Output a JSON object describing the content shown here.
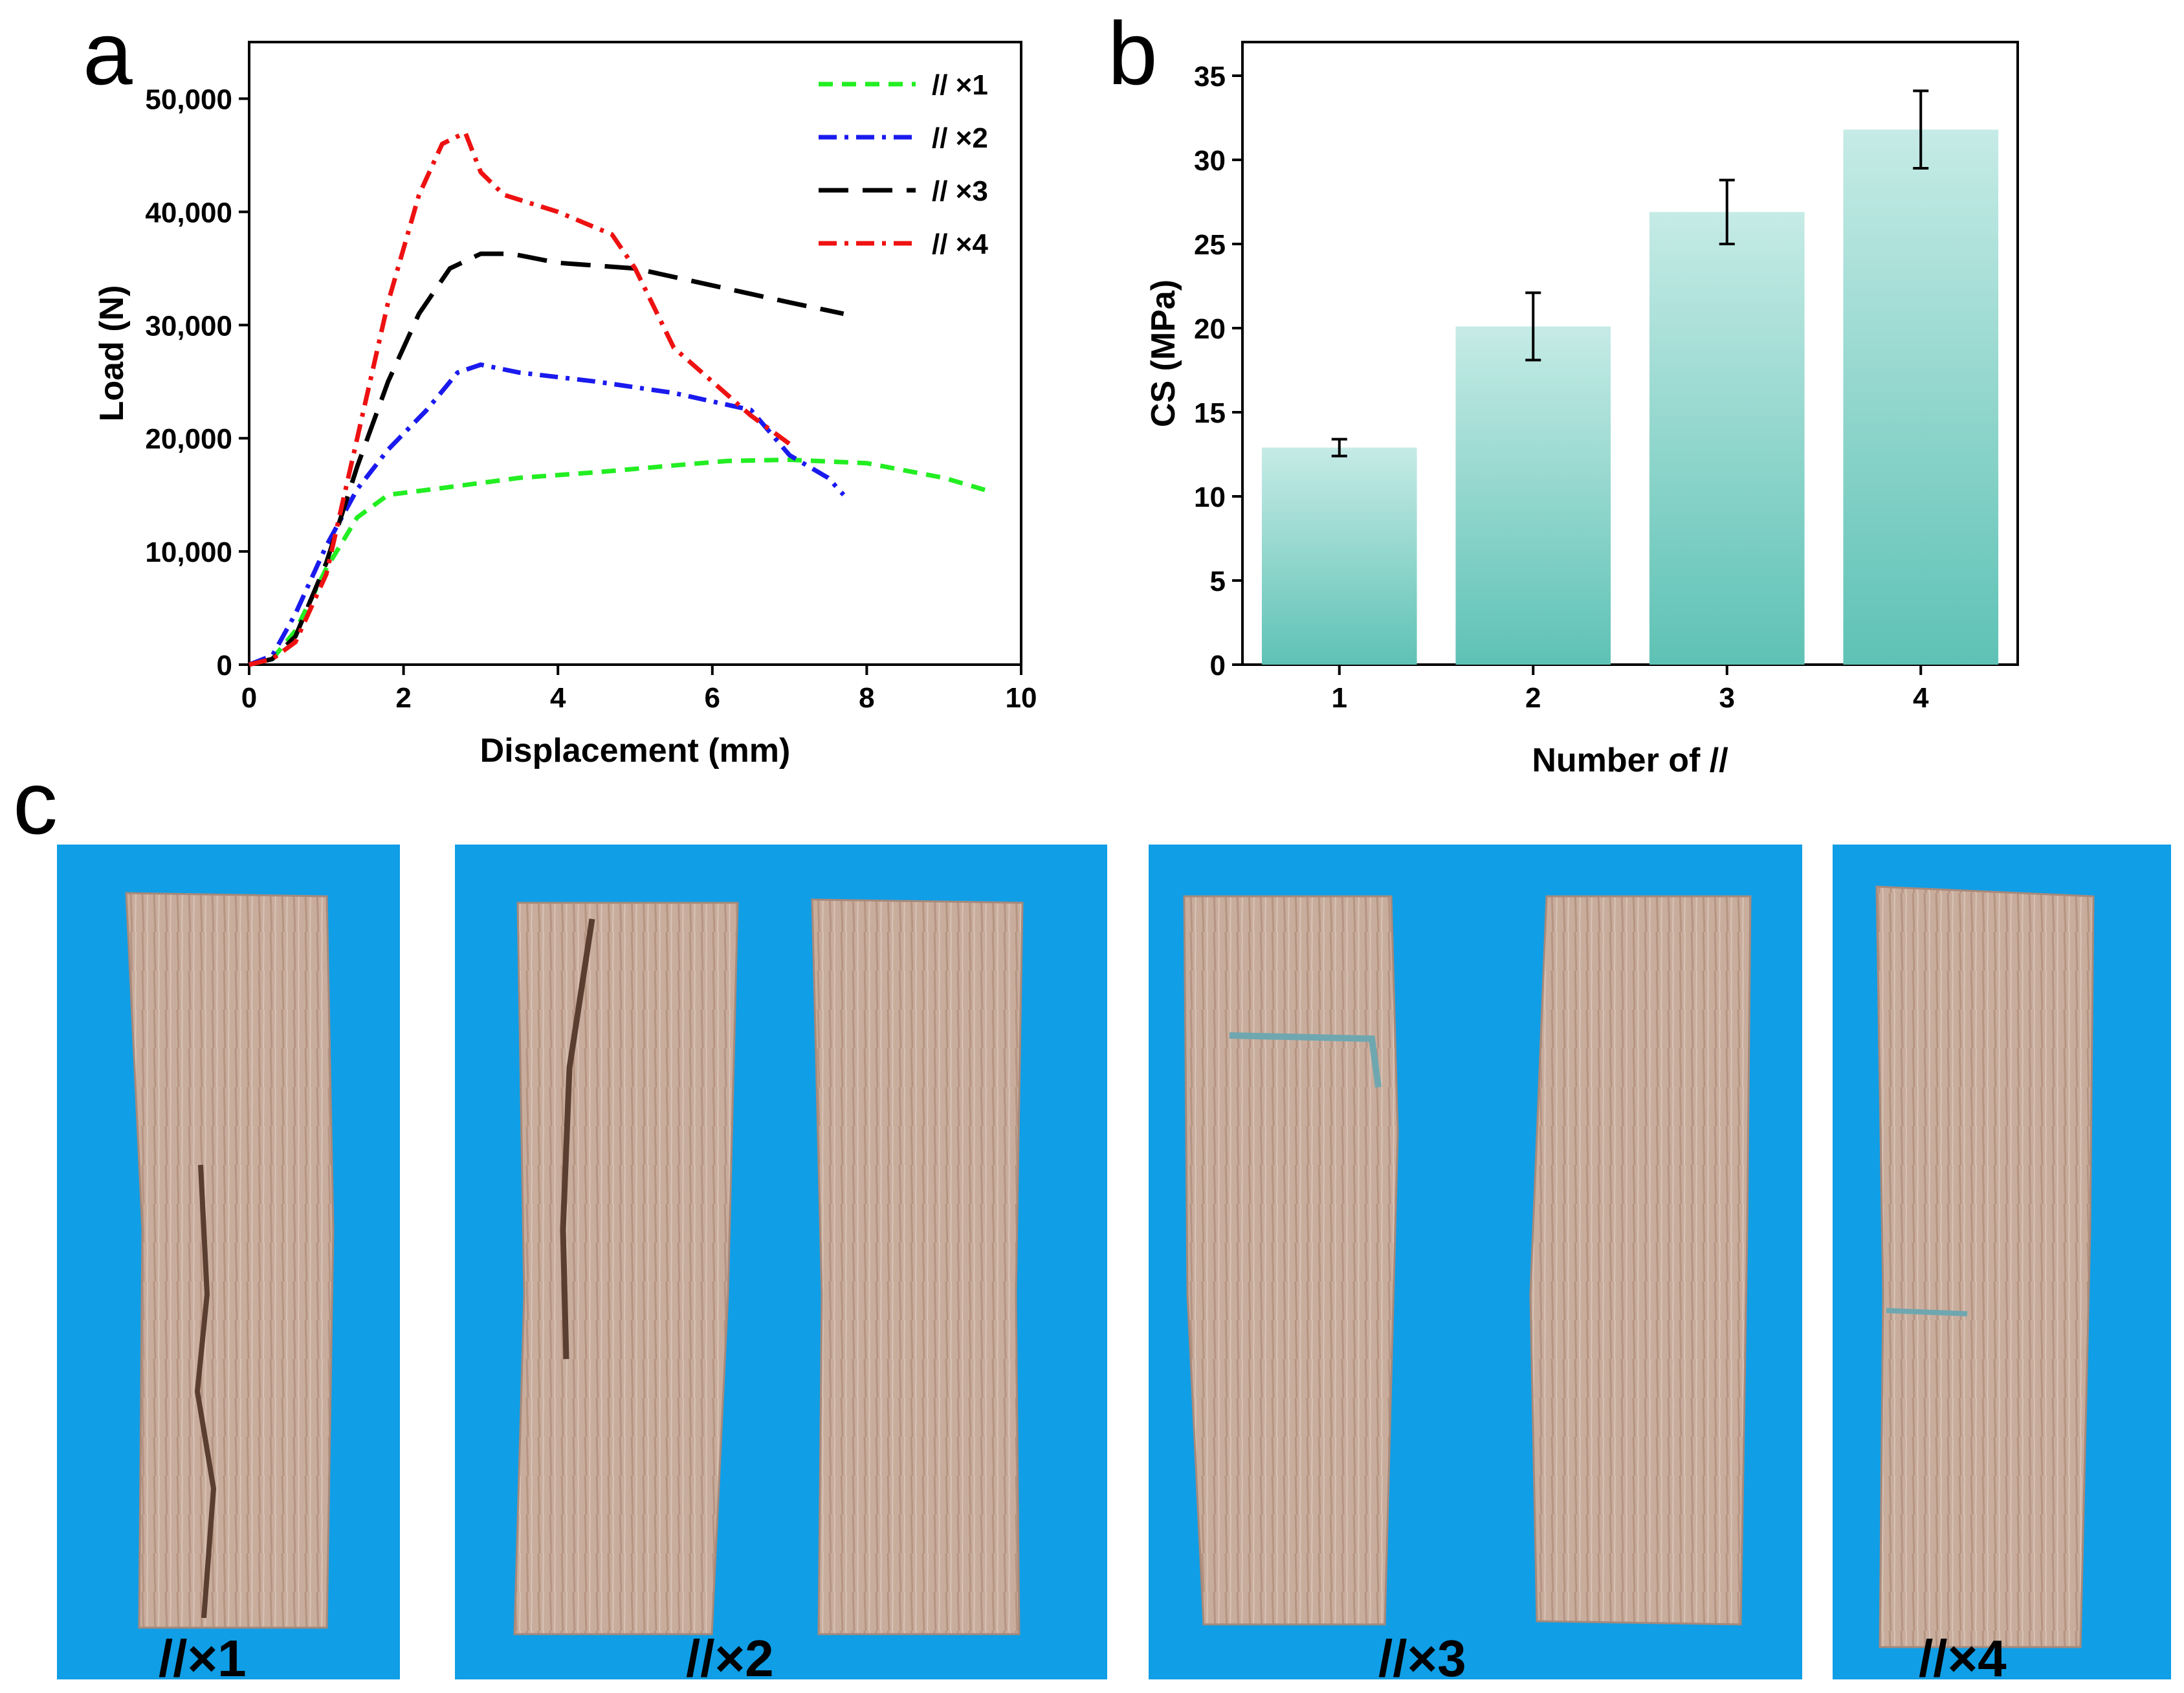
{
  "figure": {
    "panels": {
      "a": "a",
      "b": "b",
      "c": "c"
    }
  },
  "chart_data": [
    {
      "id": "a",
      "type": "line",
      "title": "",
      "xlabel": "Displacement (mm)",
      "ylabel": "Load (N)",
      "xlim": [
        0,
        10
      ],
      "ylim": [
        0,
        55000
      ],
      "xticks": [
        0,
        2,
        4,
        6,
        8,
        10
      ],
      "xtick_labels": [
        "0",
        "2",
        "4",
        "6",
        "8",
        "10"
      ],
      "yticks": [
        0,
        10000,
        20000,
        30000,
        40000,
        50000
      ],
      "ytick_labels": [
        "0",
        "10,000",
        "20,000",
        "30,000",
        "40,000",
        "50,000"
      ],
      "grid": false,
      "legend_position": "top-right",
      "series": [
        {
          "name": "// ×1",
          "color": "#22ee22",
          "dash": "dashed",
          "x": [
            0,
            0.3,
            0.6,
            1.0,
            1.4,
            1.8,
            2.5,
            3.5,
            4.5,
            5.5,
            6.2,
            7.0,
            8.0,
            9.0,
            9.6
          ],
          "y": [
            0,
            500,
            3000,
            8500,
            13000,
            15000,
            15600,
            16500,
            17000,
            17600,
            18000,
            18100,
            17800,
            16500,
            15300
          ]
        },
        {
          "name": "// ×2",
          "color": "#1a1aee",
          "dash": "dashdot",
          "x": [
            0,
            0.3,
            0.6,
            1.0,
            1.4,
            1.8,
            2.3,
            2.7,
            3.0,
            3.5,
            4.5,
            5.5,
            6.5,
            7.0,
            7.5,
            7.7
          ],
          "y": [
            0,
            800,
            4500,
            10500,
            15500,
            19000,
            22500,
            25800,
            26500,
            25800,
            25000,
            24000,
            22500,
            18500,
            16500,
            15000
          ]
        },
        {
          "name": "// ×3",
          "color": "#000000",
          "dash": "longdash",
          "x": [
            0,
            0.3,
            0.6,
            1.0,
            1.4,
            1.8,
            2.2,
            2.6,
            3.0,
            3.4,
            4.0,
            5.0,
            6.0,
            7.0,
            7.7
          ],
          "y": [
            0,
            500,
            2500,
            9000,
            17500,
            25000,
            31000,
            35000,
            36300,
            36300,
            35500,
            35000,
            33500,
            32000,
            31000
          ]
        },
        {
          "name": "// ×4",
          "color": "#ee1111",
          "dash": "dashdot",
          "x": [
            0,
            0.3,
            0.6,
            1.0,
            1.4,
            1.8,
            2.2,
            2.5,
            2.8,
            3.0,
            3.3,
            4.0,
            4.7,
            5.0,
            5.5,
            6.0,
            6.5,
            7.0
          ],
          "y": [
            0,
            500,
            2000,
            8000,
            20000,
            32000,
            41500,
            46000,
            47000,
            43500,
            41500,
            40000,
            38000,
            35000,
            28000,
            25000,
            22000,
            19500
          ]
        }
      ]
    },
    {
      "id": "b",
      "type": "bar",
      "title": "",
      "xlabel": "Number of  //",
      "ylabel": "CS (MPa)",
      "categories": [
        "1",
        "2",
        "3",
        "4"
      ],
      "values": [
        12.9,
        20.1,
        26.9,
        31.8
      ],
      "errors": [
        0.5,
        2.0,
        1.9,
        2.3
      ],
      "ylim": [
        0,
        37
      ],
      "yticks": [
        0,
        5,
        10,
        15,
        20,
        25,
        30,
        35
      ],
      "ytick_labels": [
        "0",
        "5",
        "10",
        "15",
        "20",
        "25",
        "30",
        "35"
      ],
      "grid": false,
      "bar_color_top": "#c6ebe6",
      "bar_color_bottom": "#5ec2b5"
    }
  ],
  "photos": {
    "background_color": "#109ee6",
    "wood_color": "#c9ad9c",
    "labels": [
      "//×1",
      "//×2",
      "//×3",
      "//×4"
    ]
  }
}
